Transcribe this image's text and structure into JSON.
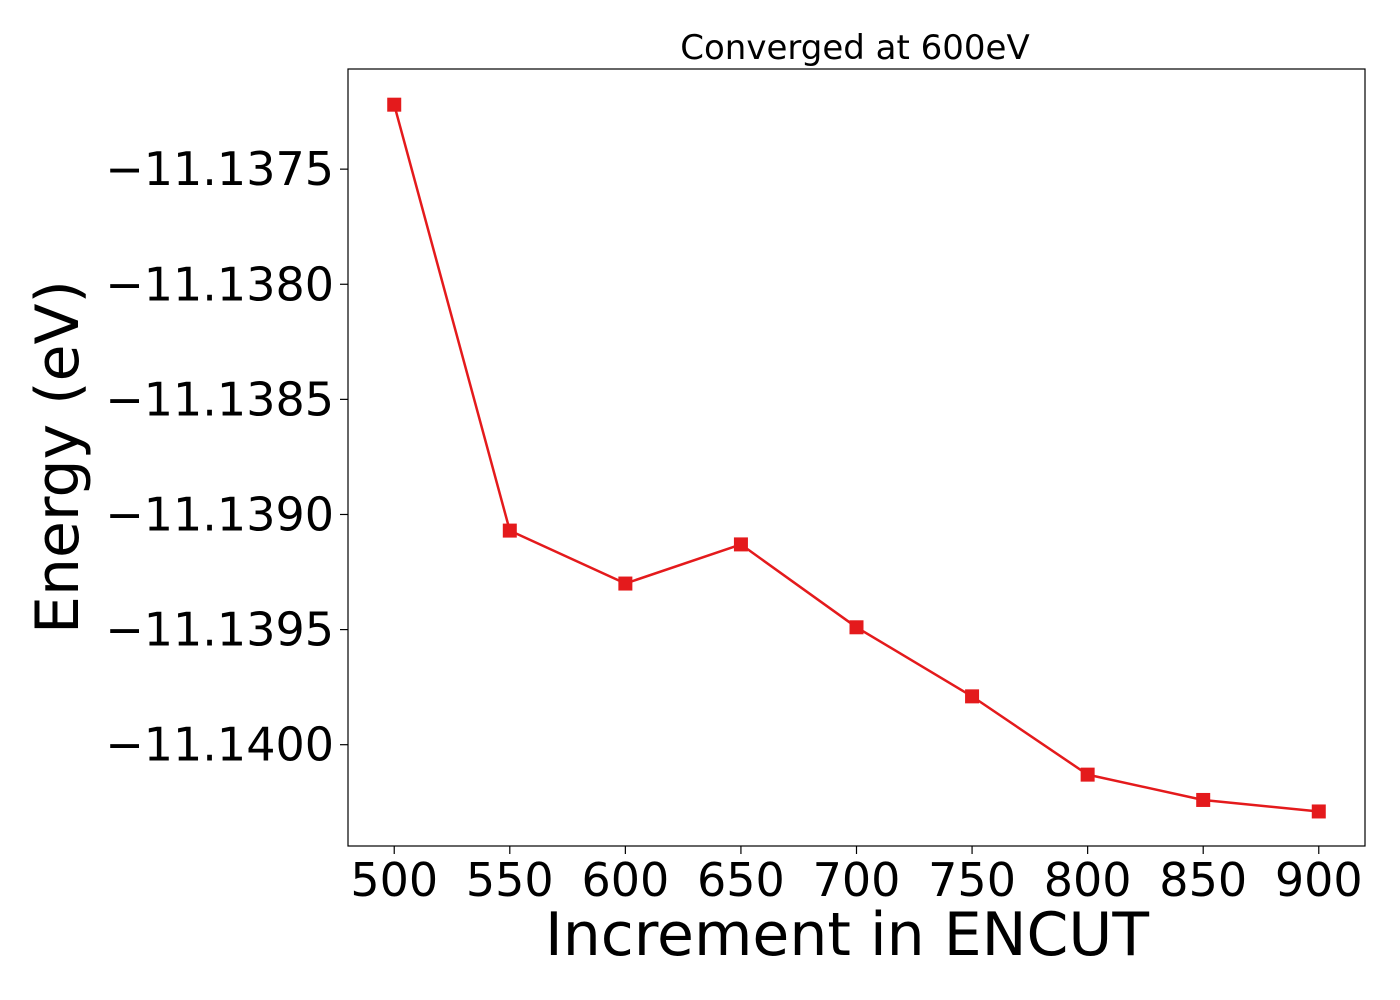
{
  "chart_data": {
    "type": "line",
    "title": "Converged at 600eV",
    "xlabel": "Increment in ENCUT",
    "ylabel": "Energy (eV)",
    "x": [
      500,
      550,
      600,
      650,
      700,
      750,
      800,
      850,
      900
    ],
    "series": [
      {
        "values": [
          -11.13722,
          -11.13907,
          -11.1393,
          -11.13913,
          -11.13949,
          -11.13979,
          -11.14013,
          -11.14024,
          -11.14029
        ],
        "color": "#e41a1c",
        "marker": "square"
      }
    ],
    "xticks": [
      500,
      550,
      600,
      650,
      700,
      750,
      800,
      850,
      900
    ],
    "xtick_labels": [
      "500",
      "550",
      "600",
      "650",
      "700",
      "750",
      "800",
      "850",
      "900"
    ],
    "yticks": [
      -11.1375,
      -11.138,
      -11.1385,
      -11.139,
      -11.1395,
      -11.14
    ],
    "ytick_labels": [
      "−11.1375",
      "−11.1380",
      "−11.1385",
      "−11.1390",
      "−11.1395",
      "−11.1400"
    ],
    "xlim": [
      480,
      920
    ],
    "ylim": [
      -11.14044,
      -11.137065
    ],
    "grid": false,
    "legend": "none"
  }
}
